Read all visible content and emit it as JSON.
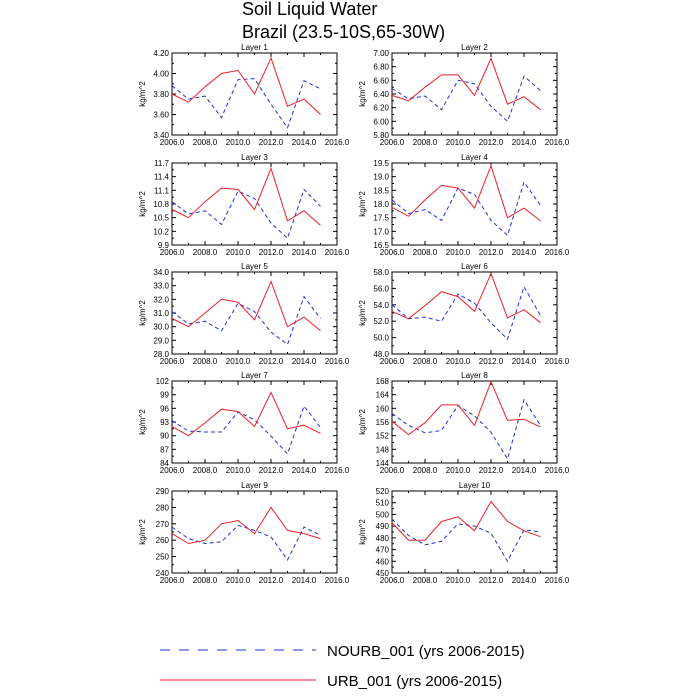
{
  "title": "Soil Liquid Water",
  "subtitle": "Brazil (23.5-10S,65-30W)",
  "colors": {
    "nourb": "#1f2fd6",
    "urb": "#e8202a",
    "axis": "#000000"
  },
  "legend": [
    {
      "key": "nourb",
      "label": "NOURB_001 (yrs 2006-2015)",
      "style": "dashed"
    },
    {
      "key": "urb",
      "label": "URB_001 (yrs 2006-2015)",
      "style": "solid"
    }
  ],
  "chart_data": [
    {
      "type": "line",
      "title": "Layer 1",
      "ylabel": "kg/m^2",
      "xlim": [
        2006,
        2016
      ],
      "ylim": [
        3.4,
        4.2
      ],
      "xticks": [
        "2006.0",
        "2008.0",
        "2010.0",
        "2012.0",
        "2014.0",
        "2016.0"
      ],
      "yticks": [
        "3.40",
        "3.60",
        "3.80",
        "4.00",
        "4.20"
      ],
      "x": [
        2006,
        2007,
        2008,
        2009,
        2010,
        2011,
        2012,
        2013,
        2014,
        2015
      ],
      "series": [
        {
          "name": "NOURB_001 (yrs 2006-2015)",
          "values": [
            3.88,
            3.75,
            3.78,
            3.57,
            3.94,
            3.95,
            3.7,
            3.47,
            3.93,
            3.85
          ]
        },
        {
          "name": "URB_001 (yrs 2006-2015)",
          "values": [
            3.8,
            3.72,
            3.87,
            4.0,
            4.03,
            3.8,
            4.15,
            3.68,
            3.75,
            3.6
          ]
        }
      ]
    },
    {
      "type": "line",
      "title": "Layer 2",
      "ylabel": "kg/m^2",
      "xlim": [
        2006,
        2016
      ],
      "ylim": [
        5.8,
        7.0
      ],
      "xticks": [
        "2006.0",
        "2008.0",
        "2010.0",
        "2012.0",
        "2014.0",
        "2016.0"
      ],
      "yticks": [
        "5.80",
        "6.00",
        "6.20",
        "6.40",
        "6.60",
        "6.80",
        "7.00"
      ],
      "x": [
        2006,
        2007,
        2008,
        2009,
        2010,
        2011,
        2012,
        2013,
        2014,
        2015
      ],
      "series": [
        {
          "name": "NOURB_001 (yrs 2006-2015)",
          "values": [
            6.48,
            6.33,
            6.37,
            6.17,
            6.6,
            6.55,
            6.22,
            6.0,
            6.66,
            6.45
          ]
        },
        {
          "name": "URB_001 (yrs 2006-2015)",
          "values": [
            6.38,
            6.3,
            6.5,
            6.68,
            6.68,
            6.38,
            6.92,
            6.25,
            6.36,
            6.17
          ]
        }
      ]
    },
    {
      "type": "line",
      "title": "Layer 3",
      "ylabel": "kg/m^2",
      "xlim": [
        2006,
        2016
      ],
      "ylim": [
        9.9,
        11.7
      ],
      "xticks": [
        "2006.0",
        "2008.0",
        "2010.0",
        "2012.0",
        "2014.0",
        "2016.0"
      ],
      "yticks": [
        "9.9",
        "10.2",
        "10.5",
        "10.8",
        "11.1",
        "11.4",
        "11.7"
      ],
      "x": [
        2006,
        2007,
        2008,
        2009,
        2010,
        2011,
        2012,
        2013,
        2014,
        2015
      ],
      "series": [
        {
          "name": "NOURB_001 (yrs 2006-2015)",
          "values": [
            10.85,
            10.58,
            10.65,
            10.35,
            11.08,
            10.92,
            10.38,
            10.05,
            11.12,
            10.75
          ]
        },
        {
          "name": "URB_001 (yrs 2006-2015)",
          "values": [
            10.68,
            10.5,
            10.85,
            11.15,
            11.12,
            10.68,
            11.58,
            10.43,
            10.65,
            10.33
          ]
        }
      ]
    },
    {
      "type": "line",
      "title": "Layer 4",
      "ylabel": "kg/m^2",
      "xlim": [
        2006,
        2016
      ],
      "ylim": [
        16.5,
        19.5
      ],
      "xticks": [
        "2006.0",
        "2008.0",
        "2010.0",
        "2012.0",
        "2014.0",
        "2016.0"
      ],
      "yticks": [
        "16.5",
        "17.0",
        "17.5",
        "18.0",
        "18.5",
        "19.0",
        "19.5"
      ],
      "x": [
        2006,
        2007,
        2008,
        2009,
        2010,
        2011,
        2012,
        2013,
        2014,
        2015
      ],
      "series": [
        {
          "name": "NOURB_001 (yrs 2006-2015)",
          "values": [
            18.15,
            17.65,
            17.8,
            17.4,
            18.58,
            18.35,
            17.4,
            16.85,
            18.8,
            17.95
          ]
        },
        {
          "name": "URB_001 (yrs 2006-2015)",
          "values": [
            17.88,
            17.55,
            18.15,
            18.68,
            18.58,
            17.85,
            19.4,
            17.5,
            17.85,
            17.38
          ]
        }
      ]
    },
    {
      "type": "line",
      "title": "Layer 5",
      "ylabel": "kg/m^2",
      "xlim": [
        2006,
        2016
      ],
      "ylim": [
        28.0,
        34.0
      ],
      "xticks": [
        "2006.0",
        "2008.0",
        "2010.0",
        "2012.0",
        "2014.0",
        "2016.0"
      ],
      "yticks": [
        "28.0",
        "29.0",
        "30.0",
        "31.0",
        "32.0",
        "33.0",
        "34.0"
      ],
      "x": [
        2006,
        2007,
        2008,
        2009,
        2010,
        2011,
        2012,
        2013,
        2014,
        2015
      ],
      "series": [
        {
          "name": "NOURB_001 (yrs 2006-2015)",
          "values": [
            31.1,
            30.2,
            30.4,
            29.7,
            31.7,
            31.1,
            29.6,
            28.7,
            32.2,
            30.6
          ]
        },
        {
          "name": "URB_001 (yrs 2006-2015)",
          "values": [
            30.6,
            30.0,
            31.0,
            32.0,
            31.8,
            30.5,
            33.3,
            30.0,
            30.7,
            29.7
          ]
        }
      ]
    },
    {
      "type": "line",
      "title": "Layer 6",
      "ylabel": "kg/m^2",
      "xlim": [
        2006,
        2016
      ],
      "ylim": [
        48.0,
        58.0
      ],
      "xticks": [
        "2006.0",
        "2008.0",
        "2010.0",
        "2012.0",
        "2014.0",
        "2016.0"
      ],
      "yticks": [
        "48.0",
        "50.0",
        "52.0",
        "54.0",
        "56.0",
        "58.0"
      ],
      "x": [
        2006,
        2007,
        2008,
        2009,
        2010,
        2011,
        2012,
        2013,
        2014,
        2015
      ],
      "series": [
        {
          "name": "NOURB_001 (yrs 2006-2015)",
          "values": [
            54.0,
            52.3,
            52.5,
            52.0,
            55.3,
            54.2,
            51.8,
            49.8,
            56.2,
            52.7
          ]
        },
        {
          "name": "URB_001 (yrs 2006-2015)",
          "values": [
            53.2,
            52.3,
            53.9,
            55.6,
            55.0,
            53.2,
            57.8,
            52.4,
            53.4,
            51.8
          ]
        }
      ]
    },
    {
      "type": "line",
      "title": "Layer 7",
      "ylabel": "kg/m^2",
      "xlim": [
        2006,
        2016
      ],
      "ylim": [
        84,
        102
      ],
      "xticks": [
        "2006.0",
        "2008.0",
        "2010.0",
        "2012.0",
        "2014.0",
        "2016.0"
      ],
      "yticks": [
        "84",
        "87",
        "90",
        "93",
        "96",
        "99",
        "102"
      ],
      "x": [
        2006,
        2007,
        2008,
        2009,
        2010,
        2011,
        2012,
        2013,
        2014,
        2015
      ],
      "series": [
        {
          "name": "NOURB_001 (yrs 2006-2015)",
          "values": [
            93.3,
            91.0,
            90.8,
            90.8,
            95.2,
            93.5,
            89.9,
            86.0,
            96.5,
            91.8
          ]
        },
        {
          "name": "URB_001 (yrs 2006-2015)",
          "values": [
            92.0,
            90.0,
            92.8,
            95.8,
            95.3,
            92.0,
            99.5,
            91.5,
            92.3,
            90.5
          ]
        }
      ]
    },
    {
      "type": "line",
      "title": "Layer 8",
      "ylabel": "kg/m^2",
      "xlim": [
        2006,
        2016
      ],
      "ylim": [
        144,
        168
      ],
      "xticks": [
        "2006.0",
        "2008.0",
        "2010.0",
        "2012.0",
        "2014.0",
        "2016.0"
      ],
      "yticks": [
        "144",
        "148",
        "152",
        "156",
        "160",
        "164",
        "168"
      ],
      "x": [
        2006,
        2007,
        2008,
        2009,
        2010,
        2011,
        2012,
        2013,
        2014,
        2015
      ],
      "series": [
        {
          "name": "NOURB_001 (yrs 2006-2015)",
          "values": [
            158.5,
            155.0,
            152.8,
            153.5,
            160.8,
            157.8,
            153.0,
            145.2,
            162.5,
            155.0
          ]
        },
        {
          "name": "URB_001 (yrs 2006-2015)",
          "values": [
            156.2,
            152.3,
            155.8,
            161.0,
            161.0,
            155.0,
            167.8,
            156.5,
            156.8,
            154.5
          ]
        }
      ]
    },
    {
      "type": "line",
      "title": "Layer 9",
      "ylabel": "kg/m^2",
      "xlim": [
        2006,
        2016
      ],
      "ylim": [
        240,
        290
      ],
      "xticks": [
        "2006.0",
        "2008.0",
        "2010.0",
        "2012.0",
        "2014.0",
        "2016.0"
      ],
      "yticks": [
        "240",
        "250",
        "260",
        "270",
        "280",
        "290"
      ],
      "x": [
        2006,
        2007,
        2008,
        2009,
        2010,
        2011,
        2012,
        2013,
        2014,
        2015
      ],
      "series": [
        {
          "name": "NOURB_001 (yrs 2006-2015)",
          "values": [
            268,
            261,
            258,
            259,
            269,
            266,
            262,
            248,
            268,
            263
          ]
        },
        {
          "name": "URB_001 (yrs 2006-2015)",
          "values": [
            264,
            258,
            260,
            270,
            272,
            264,
            280,
            266,
            264,
            261
          ]
        }
      ]
    },
    {
      "type": "line",
      "title": "Layer 10",
      "ylabel": "kg/m^2",
      "xlim": [
        2006,
        2016
      ],
      "ylim": [
        450,
        520
      ],
      "xticks": [
        "2006.0",
        "2008.0",
        "2010.0",
        "2012.0",
        "2014.0",
        "2016.0"
      ],
      "yticks": [
        "450",
        "460",
        "470",
        "480",
        "490",
        "500",
        "510",
        "520"
      ],
      "x": [
        2006,
        2007,
        2008,
        2009,
        2010,
        2011,
        2012,
        2013,
        2014,
        2015
      ],
      "series": [
        {
          "name": "NOURB_001 (yrs 2006-2015)",
          "values": [
            496,
            482,
            474,
            477,
            492,
            490,
            484,
            460,
            487,
            485
          ]
        },
        {
          "name": "URB_001 (yrs 2006-2015)",
          "values": [
            493,
            478,
            478,
            494,
            498,
            486,
            511,
            494,
            486,
            481
          ]
        }
      ]
    }
  ]
}
